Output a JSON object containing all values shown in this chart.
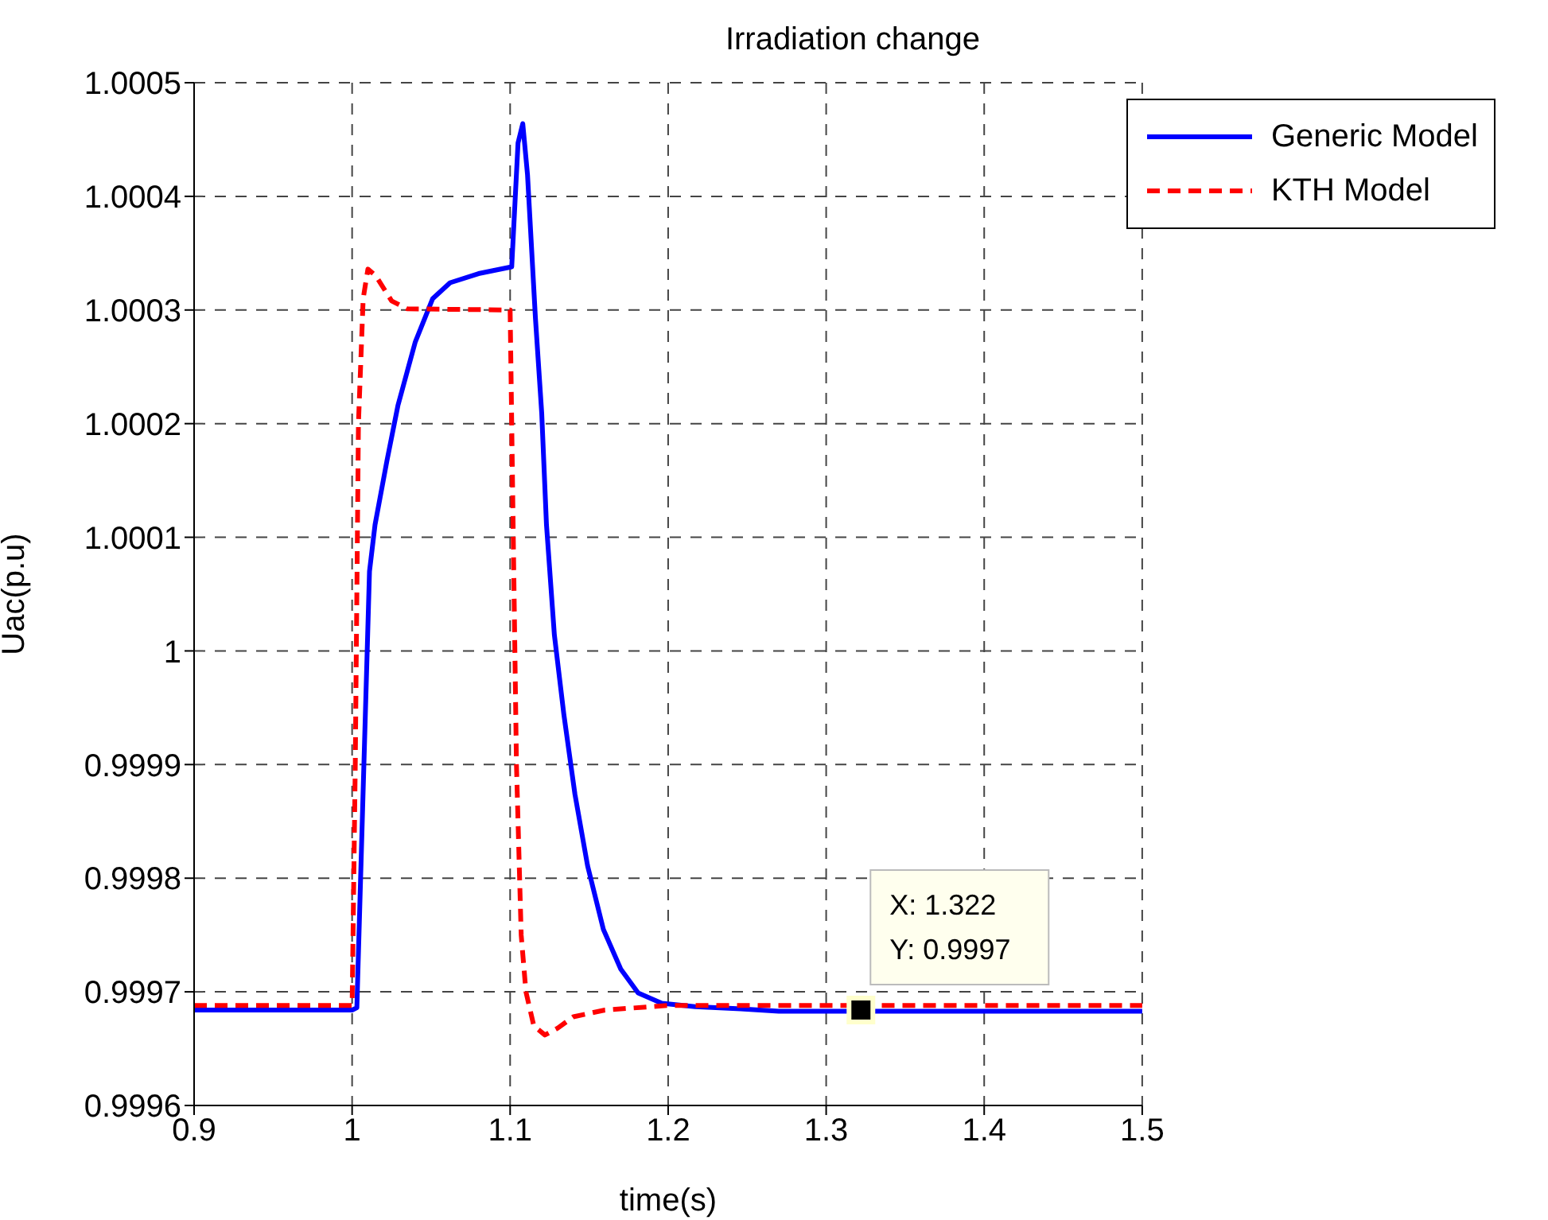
{
  "chart_data": {
    "type": "line",
    "title": "Irradiation change",
    "xlabel": "time(s)",
    "ylabel": "Uac(p.u)",
    "xlim": [
      0.9,
      1.5
    ],
    "xticks": [
      0.9,
      1,
      1.1,
      1.2,
      1.3,
      1.4,
      1.5
    ],
    "ylim": [
      0.9996,
      1.0005
    ],
    "yticks": [
      0.9996,
      0.9997,
      0.9998,
      0.9999,
      1,
      1.0001,
      1.0002,
      1.0003,
      1.0004,
      1.0005
    ],
    "grid": true,
    "legend": "top right",
    "marker": "none",
    "series": [
      {
        "name": "Generic Model",
        "color": "#0000ff",
        "line_style": "solid",
        "x": [
          0.9,
          1.0,
          1.003,
          1.011,
          1.0145,
          1.022,
          1.029,
          1.04,
          1.051,
          1.062,
          1.08,
          1.101,
          1.105,
          1.108,
          1.111,
          1.116,
          1.12,
          1.123,
          1.128,
          1.134,
          1.141,
          1.149,
          1.159,
          1.17,
          1.181,
          1.196,
          1.217,
          1.246,
          1.27,
          1.5
        ],
        "values": [
          0.999684,
          0.999684,
          0.999686,
          1.00007,
          1.000111,
          1.000167,
          1.000216,
          1.000272,
          1.00031,
          1.000324,
          1.000332,
          1.000338,
          1.000447,
          1.000464,
          1.000419,
          1.000293,
          1.000209,
          1.000111,
          1.000014,
          0.999944,
          0.999874,
          0.999811,
          0.999755,
          0.99972,
          0.999699,
          0.99969,
          0.999687,
          0.999685,
          0.999683,
          0.999683
        ]
      },
      {
        "name": "KTH Model",
        "color": "#ff0000",
        "line_style": "dashed",
        "x": [
          0.9,
          1.0,
          1.002,
          1.004,
          1.007,
          1.01,
          1.015,
          1.025,
          1.035,
          1.1,
          1.102,
          1.104,
          1.107,
          1.11,
          1.115,
          1.122,
          1.13,
          1.14,
          1.16,
          1.2,
          1.5
        ],
        "values": [
          0.999688,
          0.999688,
          0.9999,
          1.0002,
          1.00031,
          1.000336,
          1.00033,
          1.000308,
          1.000301,
          1.0003,
          1.0001,
          0.9999,
          0.99975,
          0.9997,
          0.99967,
          0.999662,
          0.999668,
          0.999678,
          0.999684,
          0.999688,
          0.999688
        ]
      }
    ],
    "annotations": [
      {
        "text": "X: 1.322\nY: 0.9997",
        "x": 1.322,
        "y": 0.999684
      }
    ]
  }
}
